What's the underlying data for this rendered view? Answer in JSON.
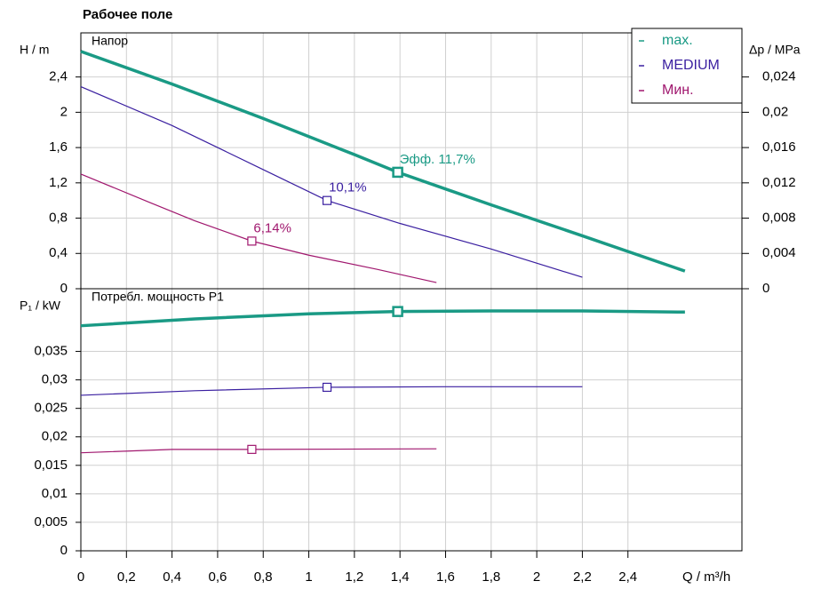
{
  "title": "Рабочее поле",
  "legend_position": "upper right",
  "chart_data": [
    {
      "type": "line",
      "panel_label": "Напор",
      "y_label": "H / m",
      "y2_label": "Δp / MPa",
      "grid": true,
      "xlim": [
        0,
        2.9
      ],
      "ylim": [
        0,
        2.9
      ],
      "y2lim": [
        0,
        0.029
      ],
      "yticks": [
        0,
        {
          "value": 0.4,
          "label": "0,4"
        },
        {
          "value": 0.8,
          "label": "0,8"
        },
        {
          "value": 1.2,
          "label": "1,2"
        },
        {
          "value": 1.6,
          "label": "1,6"
        },
        2,
        {
          "value": 2.4,
          "label": "2,4"
        }
      ],
      "y2ticks": [
        0,
        {
          "value": 0.004,
          "label": "0,004"
        },
        {
          "value": 0.008,
          "label": "0,008"
        },
        {
          "value": 0.012,
          "label": "0,012"
        },
        {
          "value": 0.016,
          "label": "0,016"
        },
        {
          "value": 0.02,
          "label": "0,02"
        },
        {
          "value": 0.024,
          "label": "0,024"
        }
      ],
      "series": [
        {
          "name": "max.",
          "color": "#1a9a85",
          "width": 3.5,
          "x": [
            0,
            0.4,
            0.8,
            1.2,
            1.39,
            1.8,
            2.2,
            2.65
          ],
          "values": [
            2.69,
            2.32,
            1.93,
            1.52,
            1.32,
            0.95,
            0.6,
            0.2
          ],
          "point": {
            "x": 1.39,
            "y": 1.32
          },
          "point_label": "Эфф.  11,7%"
        },
        {
          "name": "MEDIUM",
          "color": "#3a1fa0",
          "width": 1.2,
          "x": [
            0,
            0.4,
            0.8,
            1.08,
            1.4,
            1.8,
            2.2
          ],
          "values": [
            2.29,
            1.85,
            1.35,
            1.0,
            0.74,
            0.45,
            0.13
          ],
          "point": {
            "x": 1.08,
            "y": 1.0
          },
          "point_label": "10,1%"
        },
        {
          "name": "Мин.",
          "color": "#a0176e",
          "width": 1.2,
          "x": [
            0,
            0.3,
            0.5,
            0.75,
            1,
            1.3,
            1.56
          ],
          "values": [
            1.3,
            0.98,
            0.77,
            0.54,
            0.38,
            0.22,
            0.07
          ],
          "point": {
            "x": 0.75,
            "y": 0.54
          },
          "point_label": "6,14%"
        }
      ]
    },
    {
      "type": "line",
      "panel_label": "Потребл. мощность P1",
      "y_label": "P₁ / kW",
      "x_label": "Q / m³/h",
      "grid": true,
      "xlim": [
        0,
        2.9
      ],
      "ylim": [
        0,
        0.046
      ],
      "xticks": [
        0,
        {
          "value": 0.2,
          "label": "0,2"
        },
        {
          "value": 0.4,
          "label": "0,4"
        },
        {
          "value": 0.6,
          "label": "0,6"
        },
        {
          "value": 0.8,
          "label": "0,8"
        },
        1,
        {
          "value": 1.2,
          "label": "1,2"
        },
        {
          "value": 1.4,
          "label": "1,4"
        },
        {
          "value": 1.6,
          "label": "1,6"
        },
        {
          "value": 1.8,
          "label": "1,8"
        },
        2,
        {
          "value": 2.2,
          "label": "2,2"
        },
        {
          "value": 2.4,
          "label": "2,4"
        }
      ],
      "yticks": [
        0,
        {
          "value": 0.005,
          "label": "0,005"
        },
        {
          "value": 0.01,
          "label": "0,01"
        },
        {
          "value": 0.015,
          "label": "0,015"
        },
        {
          "value": 0.02,
          "label": "0,02"
        },
        {
          "value": 0.025,
          "label": "0,025"
        },
        {
          "value": 0.03,
          "label": "0,03"
        },
        {
          "value": 0.035,
          "label": "0,035"
        }
      ],
      "series": [
        {
          "color": "#1a9a85",
          "width": 3.5,
          "x": [
            0,
            0.5,
            1,
            1.39,
            1.8,
            2.2,
            2.65
          ],
          "values": [
            0.0395,
            0.0407,
            0.0416,
            0.042,
            0.0421,
            0.0421,
            0.0419
          ],
          "point": {
            "x": 1.39,
            "y": 0.042
          }
        },
        {
          "color": "#3a1fa0",
          "width": 1.2,
          "x": [
            0,
            0.5,
            1.08,
            1.6,
            2.2
          ],
          "values": [
            0.0273,
            0.0281,
            0.0287,
            0.0288,
            0.0288
          ],
          "point": {
            "x": 1.08,
            "y": 0.0287
          }
        },
        {
          "color": "#a0176e",
          "width": 1.2,
          "x": [
            0,
            0.4,
            0.75,
            1.56
          ],
          "values": [
            0.0172,
            0.0178,
            0.0178,
            0.0179
          ],
          "point": {
            "x": 0.75,
            "y": 0.0178
          }
        }
      ]
    }
  ]
}
